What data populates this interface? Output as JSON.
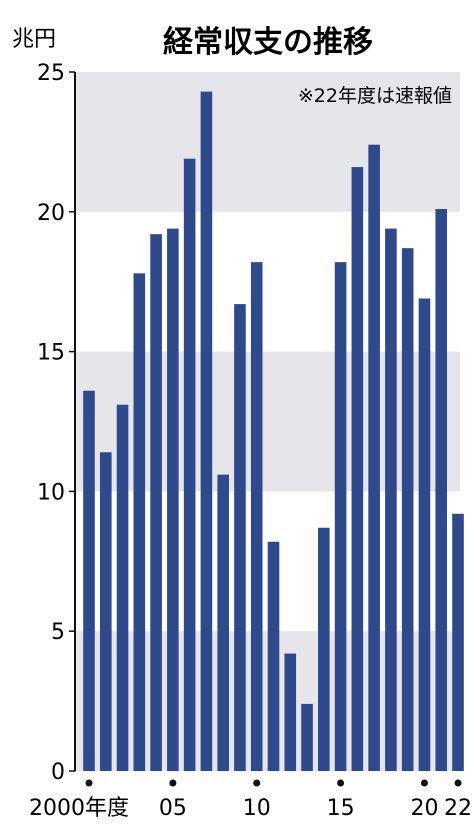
{
  "chart_data": {
    "type": "bar",
    "title": "経常収支の推移",
    "unit_label": "兆円",
    "note": "※22年度は速報値",
    "ylim": [
      0,
      25
    ],
    "yticks": [
      0,
      5,
      10,
      15,
      20,
      25
    ],
    "grid": "alternating horizontal bands",
    "categories": [
      "2000",
      "2001",
      "2002",
      "2003",
      "2004",
      "2005",
      "2006",
      "2007",
      "2008",
      "2009",
      "2010",
      "2011",
      "2012",
      "2013",
      "2014",
      "2015",
      "2016",
      "2017",
      "2018",
      "2019",
      "2020",
      "2021",
      "2022"
    ],
    "values": [
      13.6,
      11.4,
      13.1,
      17.8,
      19.2,
      19.4,
      21.9,
      24.3,
      10.6,
      16.7,
      18.2,
      8.2,
      4.2,
      2.4,
      8.7,
      18.2,
      21.6,
      22.4,
      19.4,
      18.7,
      16.9,
      20.1,
      9.2
    ],
    "xtick_labels": [
      {
        "index": 0,
        "label": "2000年度"
      },
      {
        "index": 5,
        "label": "05"
      },
      {
        "index": 10,
        "label": "10"
      },
      {
        "index": 15,
        "label": "15"
      },
      {
        "index": 20,
        "label": "20"
      },
      {
        "index": 22,
        "label": "22"
      }
    ],
    "colors": {
      "bar": "#2e4a8c",
      "band": "#e6e6ea",
      "text": "#111111"
    }
  }
}
